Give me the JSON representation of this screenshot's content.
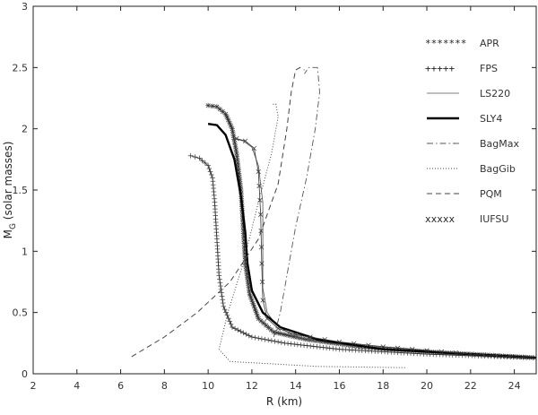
{
  "chart_data": {
    "type": "line",
    "xlabel": "R (km)",
    "ylabel": "M",
    "ylabel_sub": "G",
    "ylabel_rest": " (solar masses)",
    "xlim": [
      2,
      25
    ],
    "ylim": [
      0,
      3
    ],
    "xticks": [
      2,
      4,
      6,
      8,
      10,
      12,
      14,
      16,
      18,
      20,
      22,
      24
    ],
    "yticks": [
      0,
      0.5,
      1,
      1.5,
      2,
      2.5,
      3
    ],
    "ytick_labels": [
      "0",
      "0.5",
      "1",
      "1.5",
      "2",
      "2.5",
      "3"
    ],
    "grid": false,
    "legend_position": "top-right",
    "series": [
      {
        "name": "APR",
        "legend_glyph": "*******",
        "style": "star",
        "points": [
          [
            10.0,
            2.19
          ],
          [
            10.4,
            2.18
          ],
          [
            10.8,
            2.12
          ],
          [
            11.1,
            2.0
          ],
          [
            11.3,
            1.8
          ],
          [
            11.5,
            1.5
          ],
          [
            11.6,
            1.2
          ],
          [
            11.7,
            0.9
          ],
          [
            11.9,
            0.65
          ],
          [
            12.3,
            0.45
          ],
          [
            13.0,
            0.34
          ],
          [
            14.5,
            0.28
          ],
          [
            17.0,
            0.22
          ],
          [
            20.0,
            0.18
          ],
          [
            22.0,
            0.16
          ],
          [
            25.0,
            0.13
          ]
        ]
      },
      {
        "name": "FPS",
        "legend_glyph": "+++++",
        "style": "plus",
        "points": [
          [
            9.2,
            1.78
          ],
          [
            9.6,
            1.76
          ],
          [
            10.0,
            1.7
          ],
          [
            10.2,
            1.6
          ],
          [
            10.3,
            1.4
          ],
          [
            10.4,
            1.1
          ],
          [
            10.5,
            0.8
          ],
          [
            10.7,
            0.55
          ],
          [
            11.1,
            0.38
          ],
          [
            12.0,
            0.3
          ],
          [
            13.5,
            0.25
          ],
          [
            16.0,
            0.2
          ],
          [
            20.0,
            0.16
          ],
          [
            25.0,
            0.13
          ]
        ]
      },
      {
        "name": "LS220",
        "legend_glyph": "",
        "style": "thin",
        "points": [
          [
            11.2,
            1.92
          ],
          [
            11.6,
            1.9
          ],
          [
            12.0,
            1.85
          ],
          [
            12.3,
            1.7
          ],
          [
            12.5,
            1.4
          ],
          [
            12.5,
            1.0
          ],
          [
            12.5,
            0.7
          ],
          [
            12.7,
            0.5
          ],
          [
            13.1,
            0.4
          ],
          [
            14.0,
            0.3
          ],
          [
            15.5,
            0.25
          ],
          [
            18.0,
            0.2
          ],
          [
            21.0,
            0.16
          ],
          [
            25.0,
            0.13
          ]
        ]
      },
      {
        "name": "SLY4",
        "legend_glyph": "",
        "style": "thick",
        "points": [
          [
            10.0,
            2.04
          ],
          [
            10.4,
            2.03
          ],
          [
            10.8,
            1.95
          ],
          [
            11.2,
            1.75
          ],
          [
            11.5,
            1.45
          ],
          [
            11.7,
            1.15
          ],
          [
            11.8,
            0.9
          ],
          [
            12.0,
            0.68
          ],
          [
            12.5,
            0.5
          ],
          [
            13.3,
            0.38
          ],
          [
            15.0,
            0.28
          ],
          [
            18.0,
            0.2
          ],
          [
            22.0,
            0.16
          ],
          [
            25.0,
            0.13
          ]
        ]
      },
      {
        "name": "BagMax",
        "legend_glyph": "",
        "style": "dashdot",
        "points": [
          [
            13.0,
            0.3
          ],
          [
            13.3,
            0.5
          ],
          [
            13.6,
            0.8
          ],
          [
            14.0,
            1.2
          ],
          [
            14.5,
            1.6
          ],
          [
            14.9,
            2.0
          ],
          [
            15.1,
            2.3
          ],
          [
            15.0,
            2.5
          ],
          [
            14.6,
            2.5
          ],
          [
            14.4,
            2.45
          ]
        ]
      },
      {
        "name": "BagGib",
        "legend_glyph": "",
        "style": "dotted",
        "points": [
          [
            19.0,
            0.05
          ],
          [
            15.0,
            0.06
          ],
          [
            11.0,
            0.1
          ],
          [
            10.5,
            0.2
          ],
          [
            10.9,
            0.5
          ],
          [
            11.6,
            0.9
          ],
          [
            12.3,
            1.4
          ],
          [
            12.9,
            1.8
          ],
          [
            13.2,
            2.1
          ],
          [
            13.1,
            2.2
          ],
          [
            12.9,
            2.2
          ]
        ]
      },
      {
        "name": "PQM",
        "legend_glyph": "",
        "style": "dashed",
        "points": [
          [
            6.5,
            0.14
          ],
          [
            8.0,
            0.3
          ],
          [
            9.5,
            0.5
          ],
          [
            11.0,
            0.75
          ],
          [
            12.3,
            1.1
          ],
          [
            13.2,
            1.55
          ],
          [
            13.6,
            2.0
          ],
          [
            13.8,
            2.3
          ],
          [
            14.0,
            2.48
          ],
          [
            14.2,
            2.5
          ],
          [
            14.4,
            2.48
          ]
        ]
      },
      {
        "name": "IUFSU",
        "legend_glyph": "xxxxx",
        "style": "cross",
        "points": [
          [
            11.3,
            1.92
          ],
          [
            11.7,
            1.9
          ],
          [
            12.1,
            1.84
          ],
          [
            12.3,
            1.65
          ],
          [
            12.4,
            1.3
          ],
          [
            12.45,
            0.9
          ],
          [
            12.5,
            0.6
          ],
          [
            12.7,
            0.45
          ],
          [
            13.2,
            0.37
          ],
          [
            14.0,
            0.32
          ],
          [
            16.0,
            0.26
          ],
          [
            18.0,
            0.22
          ],
          [
            20.0,
            0.19
          ],
          [
            22.0,
            0.16
          ],
          [
            25.0,
            0.13
          ]
        ]
      }
    ]
  }
}
